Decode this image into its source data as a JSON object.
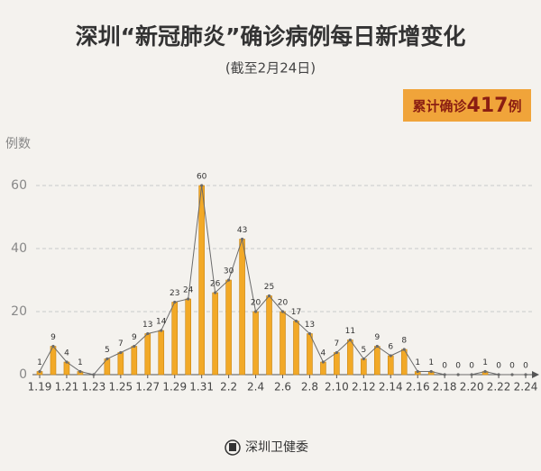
{
  "chart_data": {
    "type": "bar",
    "title": "深圳“新冠肺炎”确诊病例每日新增变化",
    "subtitle": "(截至2月24日)",
    "badge": {
      "prefix": "累计确诊",
      "total": 417,
      "suffix": "例"
    },
    "y_label": "例数",
    "source": "深圳卫健委",
    "categories": [
      "1.19",
      null,
      "1.21",
      null,
      "1.23",
      null,
      "1.25",
      null,
      "1.27",
      null,
      "1.29",
      null,
      "1.31",
      null,
      "2.2",
      null,
      "2.4",
      null,
      "2.6",
      null,
      "2.8",
      null,
      "2.10",
      null,
      "2.12",
      null,
      "2.14",
      null,
      "2.16",
      null,
      "2.18",
      null,
      "2.20",
      null,
      "2.22",
      null,
      "2.24"
    ],
    "values": [
      1,
      9,
      4,
      1,
      0,
      5,
      7,
      9,
      13,
      14,
      23,
      24,
      60,
      26,
      30,
      43,
      20,
      25,
      20,
      17,
      13,
      4,
      7,
      11,
      5,
      9,
      6,
      8,
      1,
      1,
      0,
      0,
      0,
      1,
      0,
      0,
      0
    ],
    "value_labels": [
      "1",
      "9",
      "4",
      "1",
      null,
      "5",
      "7",
      "9",
      "13",
      "14",
      "23",
      "24",
      "60",
      "26",
      "30",
      "43",
      "20",
      "25",
      "20",
      "17",
      "13",
      "4",
      "7",
      "11",
      "5",
      "9",
      "6",
      "8",
      "1",
      "1",
      "0",
      "0",
      "0",
      "1",
      "0",
      "0",
      "0"
    ],
    "color": "#f2a927",
    "line_color": "#6b6b6b",
    "ylim": [
      0,
      70
    ],
    "yticks": [
      0,
      20,
      40,
      60
    ],
    "grid": true
  }
}
